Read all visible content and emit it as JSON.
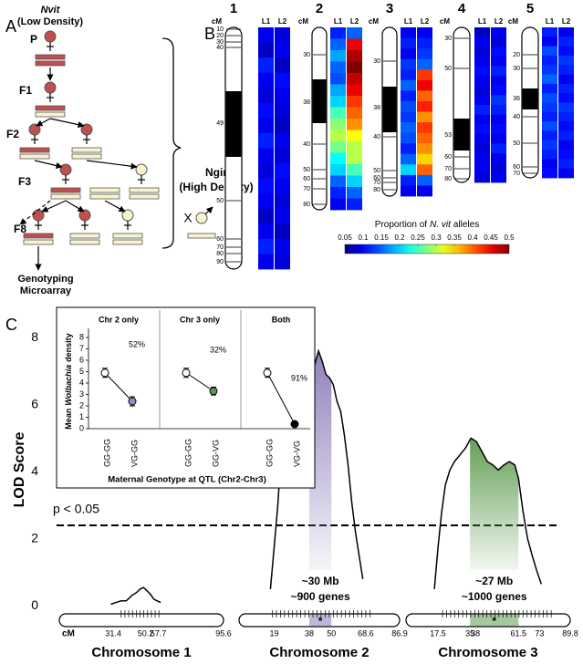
{
  "panel_a": {
    "label": "A",
    "parent_species": "Nvit",
    "parent_note": "(Low Density)",
    "generations": [
      "P",
      "F1",
      "F2",
      "F3",
      "F8"
    ],
    "other_species": "Ngir",
    "other_note": "(High Density)",
    "cross": "X",
    "output": [
      "Genotyping",
      "Microarray"
    ]
  },
  "chart_data": [
    {
      "type": "heatmap",
      "label": "B",
      "cm_label": "cM",
      "lines": [
        "L1",
        "L2"
      ],
      "chromosomes": [
        {
          "name": "1",
          "ticks": [
            10,
            20,
            30,
            40,
            49,
            50,
            60,
            70,
            80,
            90
          ],
          "values": [
            [
              0.1,
              0.08,
              0.12,
              0.1,
              0.09,
              0.11,
              0.1,
              0.12,
              0.1,
              0.09,
              0.11,
              0.1,
              0.08,
              0.1,
              0.12,
              0.1
            ],
            [
              0.09,
              0.1,
              0.08,
              0.11,
              0.1,
              0.09,
              0.08,
              0.1,
              0.09,
              0.11,
              0.1,
              0.09,
              0.1,
              0.08,
              0.1,
              0.09
            ]
          ]
        },
        {
          "name": "2",
          "ticks": [
            30,
            38,
            40,
            50,
            60,
            70,
            80
          ],
          "values": [
            [
              0.12,
              0.15,
              0.18,
              0.15,
              0.14,
              0.18,
              0.2,
              0.25,
              0.28,
              0.3,
              0.27,
              0.22,
              0.2,
              0.15,
              0.12,
              0.1
            ],
            [
              0.15,
              0.45,
              0.48,
              0.5,
              0.47,
              0.45,
              0.42,
              0.4,
              0.38,
              0.33,
              0.3,
              0.3,
              0.25,
              0.2,
              0.15,
              0.12
            ]
          ]
        },
        {
          "name": "3",
          "ticks": [
            30,
            38,
            40,
            50,
            60,
            70,
            80
          ],
          "values": [
            [
              0.1,
              0.12,
              0.1,
              0.13,
              0.12,
              0.15,
              0.12,
              0.14,
              0.13,
              0.15,
              0.14,
              0.12,
              0.15,
              0.2,
              0.12,
              0.1
            ],
            [
              0.1,
              0.12,
              0.13,
              0.15,
              0.42,
              0.45,
              0.4,
              0.43,
              0.38,
              0.42,
              0.4,
              0.38,
              0.35,
              0.4,
              0.15,
              0.1
            ]
          ]
        },
        {
          "name": "4",
          "ticks": [
            30,
            50,
            53,
            60,
            70,
            80
          ],
          "values": [
            [
              0.08,
              0.1,
              0.09,
              0.1,
              0.11,
              0.1,
              0.09,
              0.1,
              0.12,
              0.1,
              0.11,
              0.1,
              0.09,
              0.1,
              0.1,
              0.09
            ],
            [
              0.1,
              0.09,
              0.11,
              0.1,
              0.12,
              0.1,
              0.11,
              0.13,
              0.12,
              0.1,
              0.11,
              0.1,
              0.12,
              0.1,
              0.09,
              0.1
            ]
          ]
        },
        {
          "name": "5",
          "ticks": [
            20,
            30,
            36,
            40,
            50,
            60,
            70
          ],
          "values": [
            [
              0.12,
              0.1,
              0.14,
              0.12,
              0.13,
              0.15,
              0.12,
              0.14,
              0.13,
              0.12,
              0.14,
              0.12,
              0.13,
              0.12,
              0.1,
              0.11
            ],
            [
              0.1,
              0.12,
              0.11,
              0.13,
              0.12,
              0.1,
              0.12,
              0.11,
              0.13,
              0.12,
              0.11,
              0.12,
              0.1,
              0.11,
              0.12,
              0.1
            ]
          ]
        }
      ],
      "colorbar": {
        "title": [
          "Proportion of",
          "N. vit",
          "alleles"
        ],
        "clim": [
          0.05,
          0.5
        ],
        "ticks": [
          0.05,
          0.1,
          0.15,
          0.2,
          0.25,
          0.3,
          0.35,
          0.4,
          0.45,
          0.5
        ],
        "colormap": "jet"
      }
    },
    {
      "type": "line",
      "label": "C",
      "ylabel": "LOD Score",
      "ylim": [
        -0.4,
        8.6
      ],
      "yticks": [
        0,
        2,
        4,
        6,
        8
      ],
      "threshold": 2.4,
      "threshold_label": "p < 0.05",
      "xlabel": "cM",
      "color": "#000000",
      "chromosomes": [
        {
          "name": "Chromosome 1",
          "xlim": [
            0,
            95.6
          ],
          "xticks": [
            31.4,
            50.2,
            57.7,
            95.6
          ],
          "x": [
            30,
            33,
            36,
            39,
            42,
            45,
            47,
            49,
            51,
            53,
            55,
            57,
            59
          ],
          "values": [
            0.05,
            0.1,
            0.15,
            0.15,
            0.3,
            0.4,
            0.5,
            0.55,
            0.45,
            0.35,
            0.2,
            0.15,
            0.1
          ]
        },
        {
          "name": "Chromosome 2",
          "xlim": [
            0,
            86.9
          ],
          "xticks": [
            19,
            38,
            50,
            68.6,
            86.9
          ],
          "x": [
            17,
            19,
            21,
            22,
            24,
            26,
            28,
            30,
            32,
            34,
            36,
            38,
            40,
            41,
            43,
            45,
            47,
            49,
            51,
            53,
            55,
            57,
            59,
            61,
            63,
            65,
            67
          ],
          "values": [
            0.5,
            1.75,
            3.0,
            3.9,
            4.6,
            5.0,
            5.3,
            6.0,
            6.5,
            6.9,
            7.2,
            7.1,
            7.5,
            7.2,
            7.6,
            7.3,
            6.9,
            6.8,
            6.6,
            6.1,
            5.8,
            5.1,
            4.2,
            3.1,
            2.2,
            1.5,
            0.8
          ],
          "interval": [
            38,
            50
          ],
          "interval_color": "#8c7bb8",
          "interval_label": [
            "~30 Mb",
            "~900 genes"
          ],
          "marker_label": "*"
        },
        {
          "name": "Chromosome 3",
          "xlim": [
            0,
            89.8
          ],
          "xticks": [
            17.5,
            35,
            38,
            61.5,
            73,
            89.8
          ],
          "x": [
            15.5,
            17.5,
            19.5,
            21.5,
            24,
            26.5,
            29.5,
            32.5,
            35.5,
            38.5,
            41.5,
            44.5,
            47.5,
            50.5,
            53.5,
            56.5,
            59.5,
            61.5,
            64,
            66.5,
            69,
            71.5,
            74
          ],
          "values": [
            0.5,
            1.75,
            2.8,
            3.6,
            4.05,
            4.3,
            4.5,
            4.7,
            5.0,
            4.9,
            4.6,
            4.3,
            4.2,
            4.05,
            4.2,
            4.3,
            4.2,
            3.8,
            2.8,
            2.0,
            1.5,
            1.05,
            0.65
          ],
          "interval": [
            35,
            61.5
          ],
          "interval_color": "#5b9a4e",
          "interval_label": [
            "~27 Mb",
            "~1000 genes"
          ],
          "marker_label": "*"
        }
      ]
    },
    {
      "type": "errorbar",
      "ylabel": [
        "Mean",
        "Wolbachia",
        "density"
      ],
      "xlabel": "Maternal Genotype at QTL (Chr2-Chr3)",
      "ylim": [
        0,
        8.4
      ],
      "yticks": [
        0,
        1,
        2,
        3,
        4,
        5,
        6,
        7,
        8
      ],
      "panels": [
        {
          "title": "Chr 2 only",
          "categories": [
            "GG-GG",
            "VG-GG"
          ],
          "values": [
            4.9,
            2.4
          ],
          "errors": [
            0.4,
            0.4
          ],
          "colors": [
            "#ffffff",
            "#9b88c6"
          ],
          "annotation": "52%"
        },
        {
          "title": "Chr 3 only",
          "categories": [
            "GG-GG",
            "GG-VG"
          ],
          "values": [
            4.9,
            3.3
          ],
          "errors": [
            0.4,
            0.35
          ],
          "colors": [
            "#ffffff",
            "#5b9a4e"
          ],
          "annotation": "32%"
        },
        {
          "title": "Both",
          "categories": [
            "GG-GG",
            "VG-VG"
          ],
          "values": [
            4.9,
            0.4
          ],
          "errors": [
            0.4,
            0.1
          ],
          "colors": [
            "#ffffff",
            "#000000"
          ],
          "annotation": "91%"
        }
      ]
    }
  ]
}
